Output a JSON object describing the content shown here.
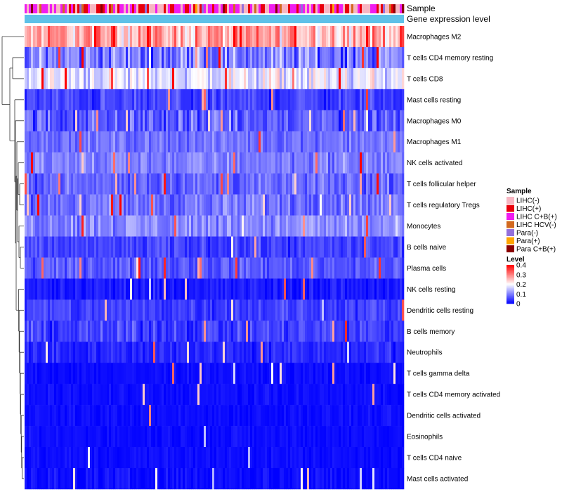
{
  "chart_data": {
    "type": "heatmap",
    "title": "",
    "annotation_tracks": [
      "Sample",
      "Gene expression level"
    ],
    "rows": [
      {
        "name": "Macrophages M2",
        "mean": 0.27,
        "spread": 0.13,
        "spikes": 0.05
      },
      {
        "name": "T cells CD4 memory resting",
        "mean": 0.1,
        "spread": 0.12,
        "spikes": 0.05
      },
      {
        "name": "T cells CD8",
        "mean": 0.18,
        "spread": 0.1,
        "spikes": 0.05
      },
      {
        "name": "Mast cells resting",
        "mean": 0.05,
        "spread": 0.06,
        "spikes": 0.03
      },
      {
        "name": "Macrophages M0",
        "mean": 0.07,
        "spread": 0.09,
        "spikes": 0.05
      },
      {
        "name": "Macrophages M1",
        "mean": 0.09,
        "spread": 0.05,
        "spikes": 0.02
      },
      {
        "name": "NK cells activated",
        "mean": 0.1,
        "spread": 0.06,
        "spikes": 0.03
      },
      {
        "name": "T cells follicular helper",
        "mean": 0.08,
        "spread": 0.06,
        "spikes": 0.03
      },
      {
        "name": "T cells regulatory  Tregs",
        "mean": 0.09,
        "spread": 0.07,
        "spikes": 0.04
      },
      {
        "name": "Monocytes",
        "mean": 0.11,
        "spread": 0.07,
        "spikes": 0.03
      },
      {
        "name": "B cells naive",
        "mean": 0.05,
        "spread": 0.05,
        "spikes": 0.02
      },
      {
        "name": "Plasma cells",
        "mean": 0.07,
        "spread": 0.05,
        "spikes": 0.03
      },
      {
        "name": "NK cells resting",
        "mean": 0.02,
        "spread": 0.04,
        "spikes": 0.03
      },
      {
        "name": "Dendritic cells resting",
        "mean": 0.05,
        "spread": 0.05,
        "spikes": 0.03
      },
      {
        "name": "B cells memory",
        "mean": 0.05,
        "spread": 0.06,
        "spikes": 0.03
      },
      {
        "name": "Neutrophils",
        "mean": 0.03,
        "spread": 0.04,
        "spikes": 0.02
      },
      {
        "name": "T cells gamma delta",
        "mean": 0.01,
        "spread": 0.02,
        "spikes": 0.02
      },
      {
        "name": "T cells CD4 memory activated",
        "mean": 0.01,
        "spread": 0.02,
        "spikes": 0.02
      },
      {
        "name": "Dendritic cells activated",
        "mean": 0.01,
        "spread": 0.02,
        "spikes": 0.02
      },
      {
        "name": "Eosinophils",
        "mean": 0.01,
        "spread": 0.02,
        "spikes": 0.02
      },
      {
        "name": "T cells CD4 naive",
        "mean": 0.01,
        "spread": 0.02,
        "spikes": 0.02
      },
      {
        "name": "Mast cells activated",
        "mean": 0.01,
        "spread": 0.03,
        "spikes": 0.03
      }
    ],
    "n_samples": 180,
    "sample_composition": [
      {
        "group": "LIHC(-)",
        "weight": 0.35
      },
      {
        "group": "LIHC(+)",
        "weight": 0.2
      },
      {
        "group": "LIHC C+B(+)",
        "weight": 0.3
      },
      {
        "group": "LIHC HCV(-)",
        "weight": 0.04
      },
      {
        "group": "Para(-)",
        "weight": 0.06
      },
      {
        "group": "Para(+)",
        "weight": 0.02
      },
      {
        "group": "Para C+B(+)",
        "weight": 0.03
      }
    ],
    "gene_expression_level_color": "#5ec1e8",
    "legend_sample": {
      "title": "Sample",
      "entries": [
        {
          "label": "LIHC(-)",
          "color": "#f7b6c2"
        },
        {
          "label": "LIHC(+)",
          "color": "#e8000b"
        },
        {
          "label": "LIHC C+B(+)",
          "color": "#ef1cf0"
        },
        {
          "label": "LIHC HCV(-)",
          "color": "#d2691e"
        },
        {
          "label": "Para(-)",
          "color": "#9370db"
        },
        {
          "label": "Para(+)",
          "color": "#ffa500"
        },
        {
          "label": "Para C+B(+)",
          "color": "#8b0000"
        }
      ]
    },
    "legend_level": {
      "title": "Level",
      "range": [
        0,
        0.4
      ],
      "ticks": [
        "0.4",
        "0.3",
        "0.2",
        "0.1",
        "0"
      ],
      "tick_values": [
        0.4,
        0.3,
        0.2,
        0.1,
        0
      ],
      "colors": {
        "low": "#0000ff",
        "mid": "#ffffff",
        "high": "#ff0000",
        "mid_value": 0.2
      }
    }
  }
}
